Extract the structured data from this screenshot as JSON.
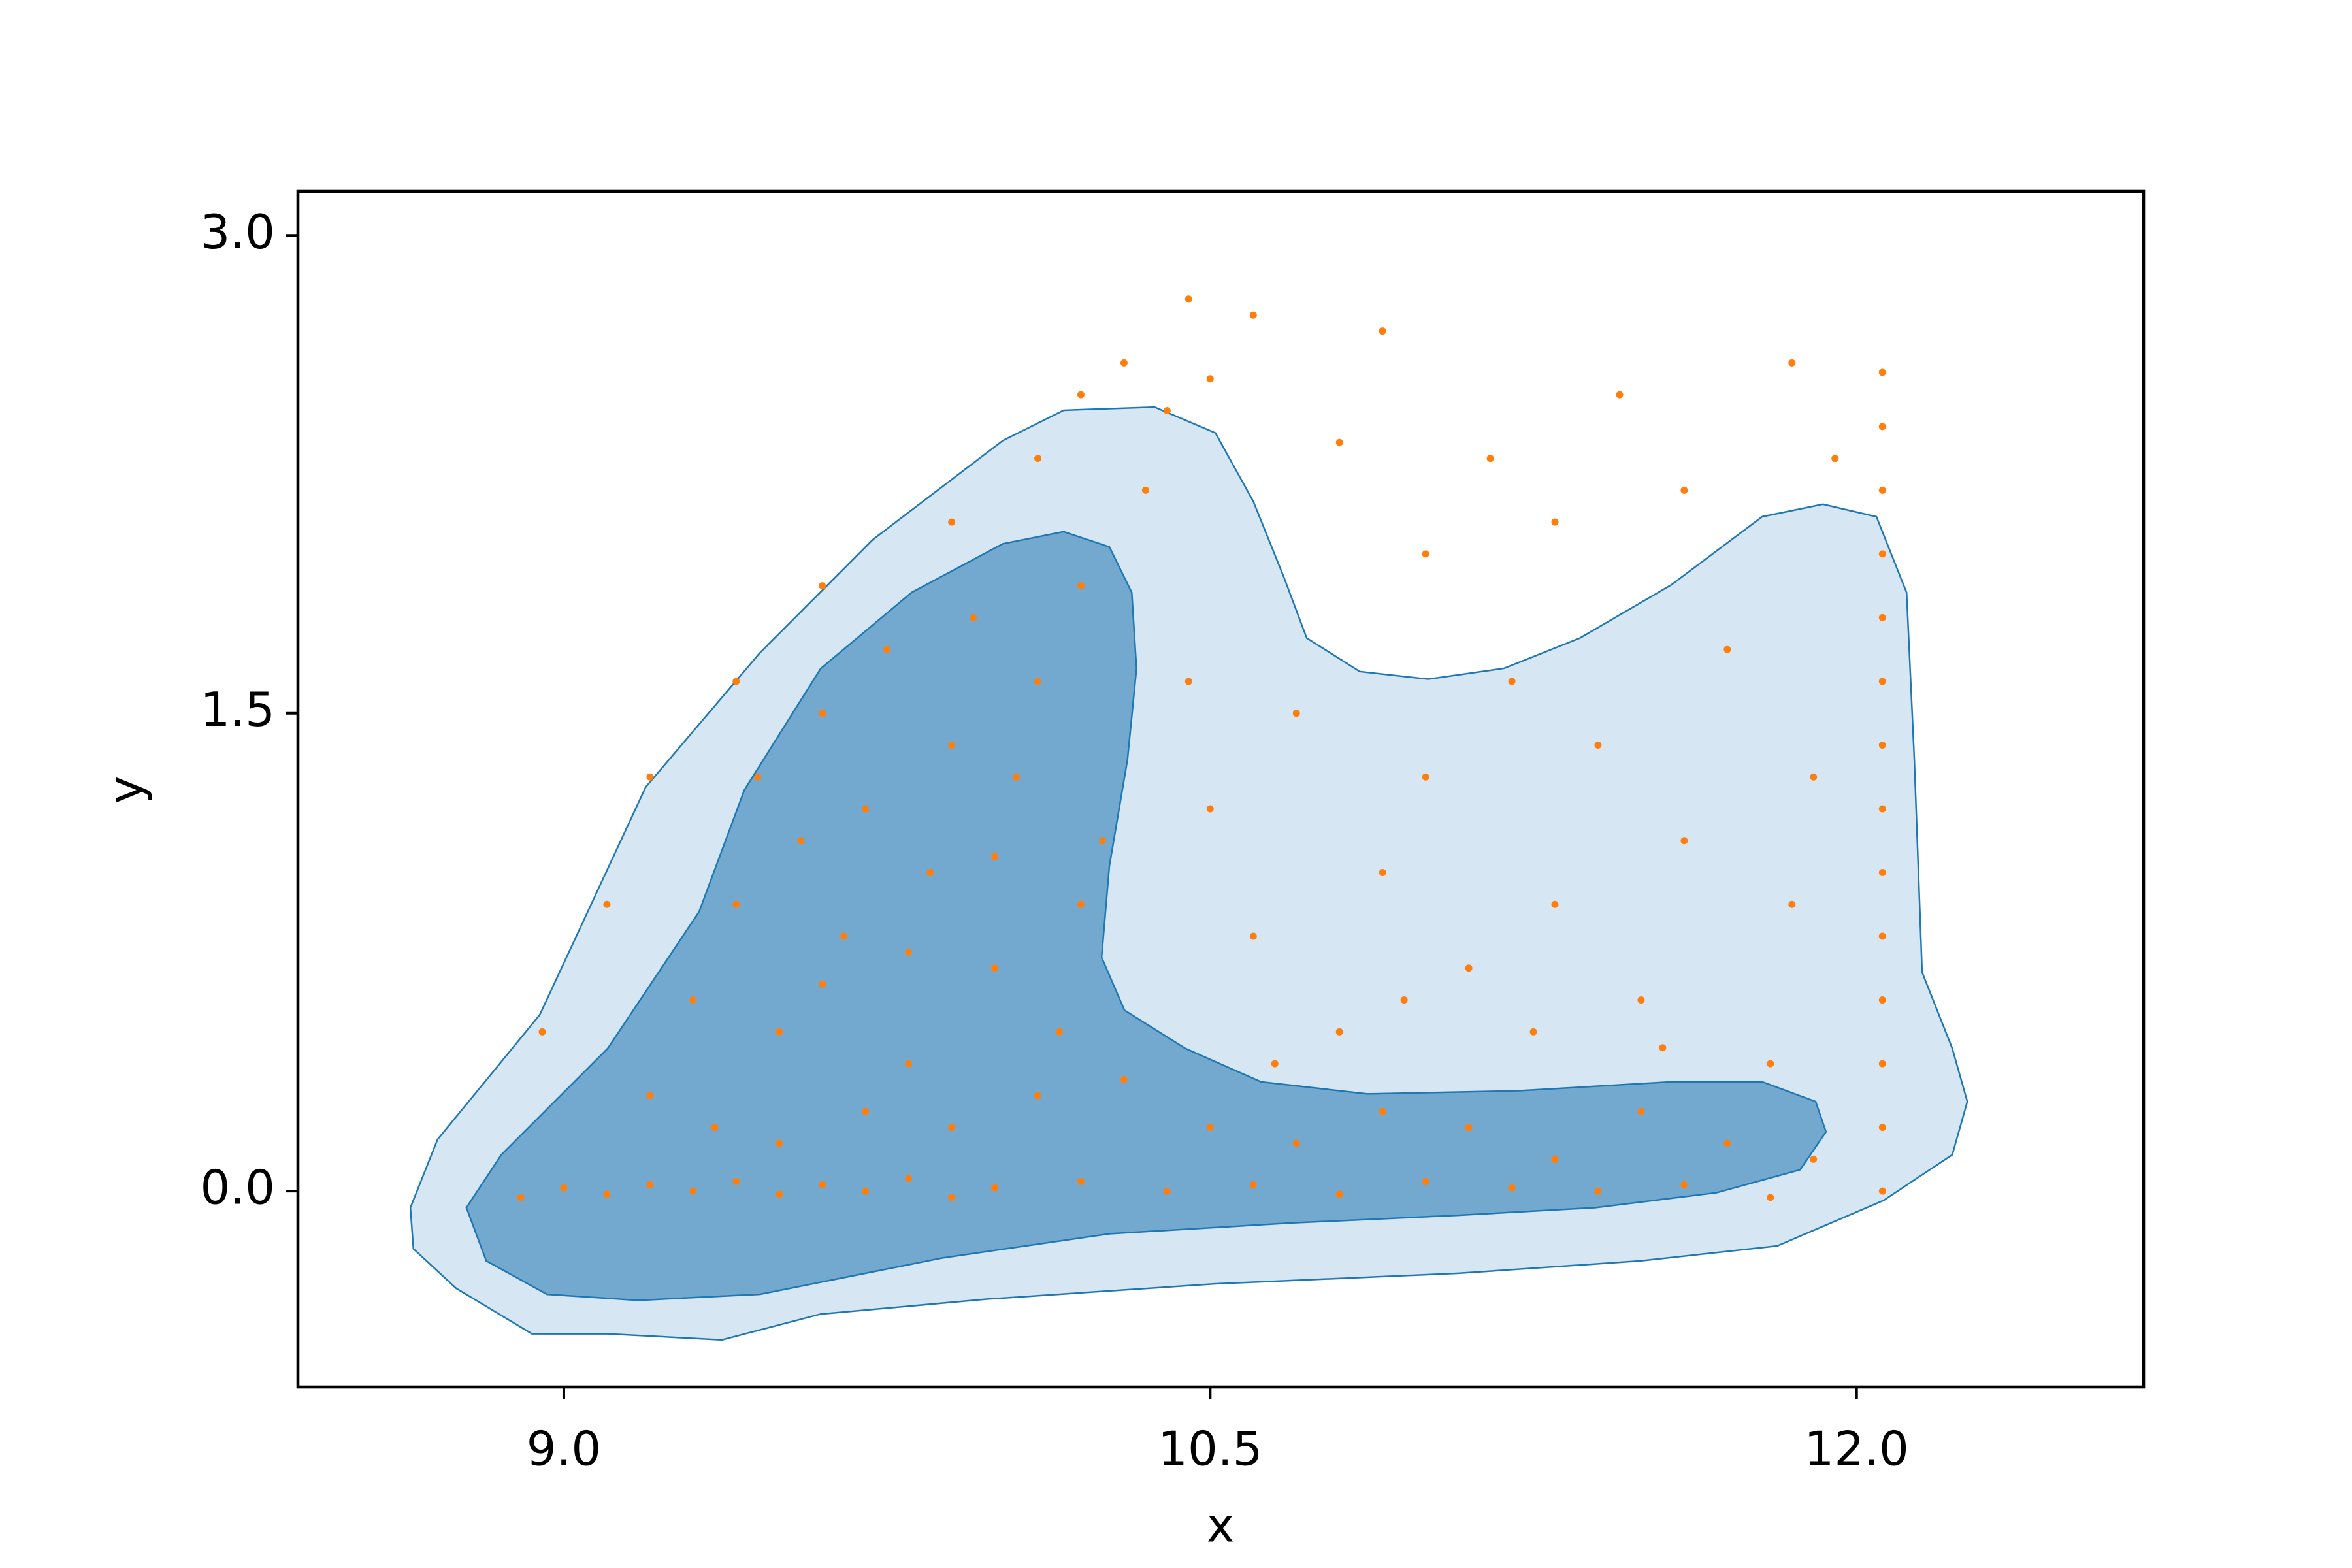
{
  "chart_data": {
    "type": "scatter",
    "xlabel": "x",
    "ylabel": "y",
    "xlim": [
      8.383,
      12.666
    ],
    "ylim": [
      -0.615,
      3.138
    ],
    "xticks": [
      {
        "value": 9.0,
        "label": "9.0"
      },
      {
        "value": 10.5,
        "label": "10.5"
      },
      {
        "value": 12.0,
        "label": "12.0"
      }
    ],
    "yticks": [
      {
        "value": 0.0,
        "label": "0.0"
      },
      {
        "value": 1.5,
        "label": "1.5"
      },
      {
        "value": 3.0,
        "label": "3.0"
      }
    ],
    "contours": [
      {
        "color": "#d6e6f2",
        "x": [
          8.644,
          8.707,
          8.944,
          9.19,
          9.454,
          9.718,
          10.019,
          10.16,
          10.371,
          10.512,
          10.6,
          10.671,
          10.724,
          10.847,
          11.006,
          11.182,
          11.358,
          11.57,
          11.781,
          11.922,
          12.046,
          12.116,
          12.134,
          12.152,
          12.222,
          12.257,
          12.222,
          12.063,
          11.816,
          11.499,
          11.076,
          10.512,
          9.983,
          9.596,
          9.367,
          9.102,
          8.926,
          8.75,
          8.651
        ],
        "y": [
          -0.052,
          0.162,
          0.553,
          1.268,
          1.688,
          2.046,
          2.356,
          2.451,
          2.461,
          2.38,
          2.165,
          1.927,
          1.736,
          1.631,
          1.607,
          1.641,
          1.736,
          1.903,
          2.117,
          2.156,
          2.117,
          1.879,
          1.354,
          0.687,
          0.448,
          0.281,
          0.114,
          -0.029,
          -0.172,
          -0.219,
          -0.258,
          -0.291,
          -0.339,
          -0.386,
          -0.467,
          -0.448,
          -0.448,
          -0.305,
          -0.181
        ]
      },
      {
        "color": "#74a9cf",
        "x": [
          8.774,
          8.855,
          9.102,
          9.314,
          9.419,
          9.596,
          9.807,
          10.019,
          10.16,
          10.266,
          10.318,
          10.329,
          10.308,
          10.266,
          10.248,
          10.301,
          10.442,
          10.618,
          10.865,
          11.217,
          11.57,
          11.781,
          11.905,
          11.929,
          11.869,
          11.675,
          11.393,
          11.076,
          10.688,
          10.266,
          9.878,
          9.455,
          9.173,
          8.961,
          8.82
        ],
        "y": [
          -0.052,
          0.114,
          0.448,
          0.877,
          1.259,
          1.64,
          1.879,
          2.032,
          2.07,
          2.022,
          1.879,
          1.64,
          1.354,
          1.02,
          0.734,
          0.568,
          0.448,
          0.343,
          0.305,
          0.315,
          0.343,
          0.343,
          0.281,
          0.186,
          0.067,
          -0.005,
          -0.052,
          -0.076,
          -0.1,
          -0.134,
          -0.21,
          -0.324,
          -0.343,
          -0.324,
          -0.219
        ]
      }
    ],
    "contour_edge": "#1f77b4",
    "series": [
      {
        "color": "#ff7f0e",
        "x": [
          8.9,
          9.0,
          9.1,
          9.2,
          9.3,
          9.4,
          9.5,
          9.6,
          9.7,
          9.8,
          9.9,
          10.0,
          10.2,
          10.4,
          10.6,
          10.8,
          11.0,
          11.2,
          11.4,
          11.6,
          11.8,
          9.2,
          9.3,
          9.4,
          9.45,
          9.5,
          9.55,
          9.6,
          9.65,
          9.7,
          9.75,
          9.8,
          9.85,
          9.9,
          9.95,
          10.0,
          10.05,
          10.1,
          10.15,
          10.2,
          10.25,
          9.35,
          9.5,
          9.7,
          9.9,
          10.1,
          10.3,
          9.6,
          9.8,
          10.0,
          10.2,
          9.1,
          9.2,
          9.4,
          9.6,
          9.9,
          10.1,
          10.2,
          10.3,
          10.35,
          10.4,
          10.45,
          10.5,
          10.6,
          10.45,
          10.9,
          10.8,
          8.95,
          10.5,
          10.6,
          10.7,
          10.8,
          10.9,
          11.0,
          11.1,
          11.2,
          11.3,
          11.4,
          11.5,
          11.6,
          11.7,
          11.8,
          11.9,
          10.65,
          10.95,
          11.25,
          11.55,
          11.85,
          11.0,
          11.3,
          11.6,
          11.45,
          11.85,
          11.15,
          11.95,
          10.5,
          10.7,
          10.9,
          11.1,
          11.3,
          11.5,
          11.7,
          11.9,
          12.06,
          12.06,
          12.06,
          12.06,
          12.06,
          12.06,
          12.06,
          12.06,
          12.06,
          12.06,
          12.06,
          12.06,
          12.06,
          12.06
        ],
        "y": [
          -0.02,
          0.01,
          -0.01,
          0.02,
          0.0,
          0.03,
          -0.01,
          0.02,
          0.0,
          0.04,
          -0.02,
          0.01,
          0.03,
          0.0,
          0.02,
          -0.01,
          0.03,
          0.01,
          0.0,
          0.02,
          -0.02,
          0.3,
          0.6,
          0.9,
          1.3,
          0.5,
          1.1,
          1.5,
          0.8,
          1.2,
          1.7,
          0.4,
          1.0,
          1.4,
          1.8,
          0.7,
          1.3,
          1.6,
          0.5,
          1.9,
          1.1,
          0.2,
          0.15,
          0.25,
          0.2,
          0.3,
          0.35,
          0.65,
          0.75,
          1.05,
          0.9,
          0.9,
          1.3,
          1.6,
          1.9,
          2.1,
          2.3,
          2.5,
          2.6,
          2.2,
          2.45,
          1.6,
          2.55,
          2.75,
          2.8,
          2.7,
          2.35,
          0.5,
          1.2,
          0.8,
          1.5,
          0.5,
          1.0,
          1.3,
          0.7,
          1.6,
          0.9,
          1.4,
          0.6,
          1.1,
          1.7,
          0.4,
          1.3,
          0.4,
          0.6,
          0.5,
          0.45,
          0.9,
          2.0,
          2.1,
          2.2,
          2.5,
          2.6,
          2.3,
          2.3,
          0.2,
          0.15,
          0.25,
          0.2,
          0.1,
          0.25,
          0.15,
          0.1,
          0.0,
          0.2,
          0.4,
          0.6,
          0.8,
          1.0,
          1.2,
          1.4,
          1.6,
          1.8,
          2.0,
          2.2,
          2.4,
          2.57
        ]
      }
    ]
  }
}
